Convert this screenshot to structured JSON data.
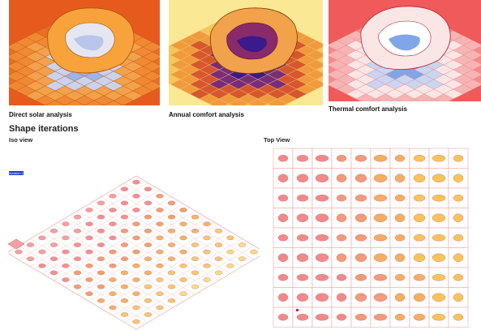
{
  "analysis": {
    "direct_solar": {
      "caption": "Direct solar analysis"
    },
    "annual_comfort": {
      "caption": "Annual comfort analysis"
    },
    "thermal_comfort": {
      "caption": "Thermal comfort analysis"
    }
  },
  "shape_iterations": {
    "title": "Shape iterations",
    "iso_view": {
      "label": "Iso view",
      "tag": "Iteration 1"
    },
    "top_view": {
      "label": "Top View"
    }
  },
  "colors": {
    "solar_bg": "#e8501c",
    "comfort_bg": "#fbe48c",
    "thermal_bg": "#f05a5a",
    "grid_line": "#e89a9a",
    "tag_bg": "#1d3fc4"
  },
  "icons": [
    "building-form-icon",
    "iteration-shape-icon"
  ]
}
